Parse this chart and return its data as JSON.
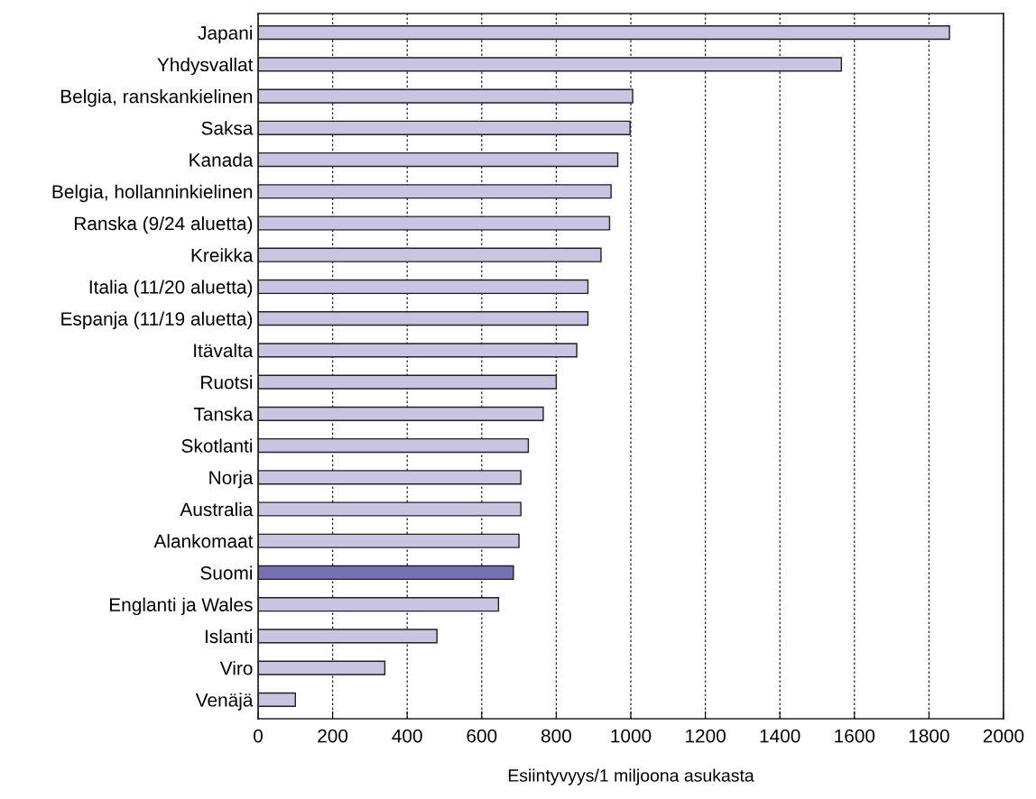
{
  "chart_data": {
    "type": "bar",
    "orientation": "horizontal",
    "xlabel": "Esiintyvyys/1 miljoona asukasta",
    "categories": [
      "Japani",
      "Yhdysvallat",
      "Belgia, ranskankielinen",
      "Saksa",
      "Kanada",
      "Belgia, hollanninkielinen",
      "Ranska (9/24 aluetta)",
      "Kreikka",
      "Italia (11/20 aluetta)",
      "Espanja (11/19 aluetta)",
      "Itävalta",
      "Ruotsi",
      "Tanska",
      "Skotlanti",
      "Norja",
      "Australia",
      "Alankomaat",
      "Suomi",
      "Englanti ja Wales",
      "Islanti",
      "Viro",
      "Venäjä"
    ],
    "values": [
      1855,
      1565,
      1005,
      998,
      965,
      947,
      943,
      920,
      885,
      885,
      855,
      800,
      765,
      725,
      705,
      705,
      700,
      685,
      645,
      480,
      340,
      100
    ],
    "colors": [
      "#c8c5e2",
      "#c8c5e2",
      "#c8c5e2",
      "#c8c5e2",
      "#c8c5e2",
      "#c8c5e2",
      "#c8c5e2",
      "#c8c5e2",
      "#c8c5e2",
      "#c8c5e2",
      "#c8c5e2",
      "#c8c5e2",
      "#c8c5e2",
      "#c8c5e2",
      "#c8c5e2",
      "#c8c5e2",
      "#c8c5e2",
      "#7672b0",
      "#c8c5e2",
      "#c8c5e2",
      "#c8c5e2",
      "#c8c5e2"
    ],
    "xlim": [
      0,
      2000
    ],
    "xticks": [
      0,
      200,
      400,
      600,
      800,
      1000,
      1200,
      1400,
      1600,
      1800,
      2000
    ],
    "grid": "x"
  }
}
